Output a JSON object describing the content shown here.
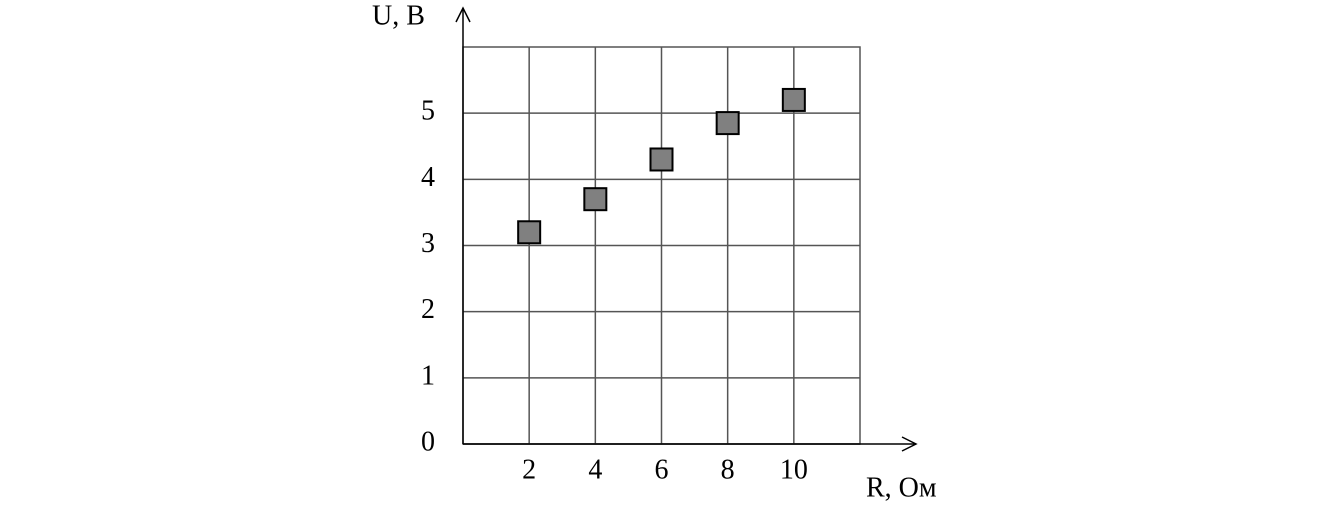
{
  "chart_data": {
    "type": "scatter",
    "xlabel": "R, Ом",
    "ylabel": "U, В",
    "x": [
      2,
      4,
      6,
      8,
      10
    ],
    "values": [
      3.2,
      3.7,
      4.3,
      4.85,
      5.2
    ],
    "color": "#808080",
    "xlim": [
      0,
      12
    ],
    "ylim": [
      0,
      6
    ],
    "xticks": [
      2,
      4,
      6,
      8,
      10
    ],
    "yticks": [
      0,
      1,
      2,
      3,
      4,
      5
    ],
    "grid": true
  }
}
